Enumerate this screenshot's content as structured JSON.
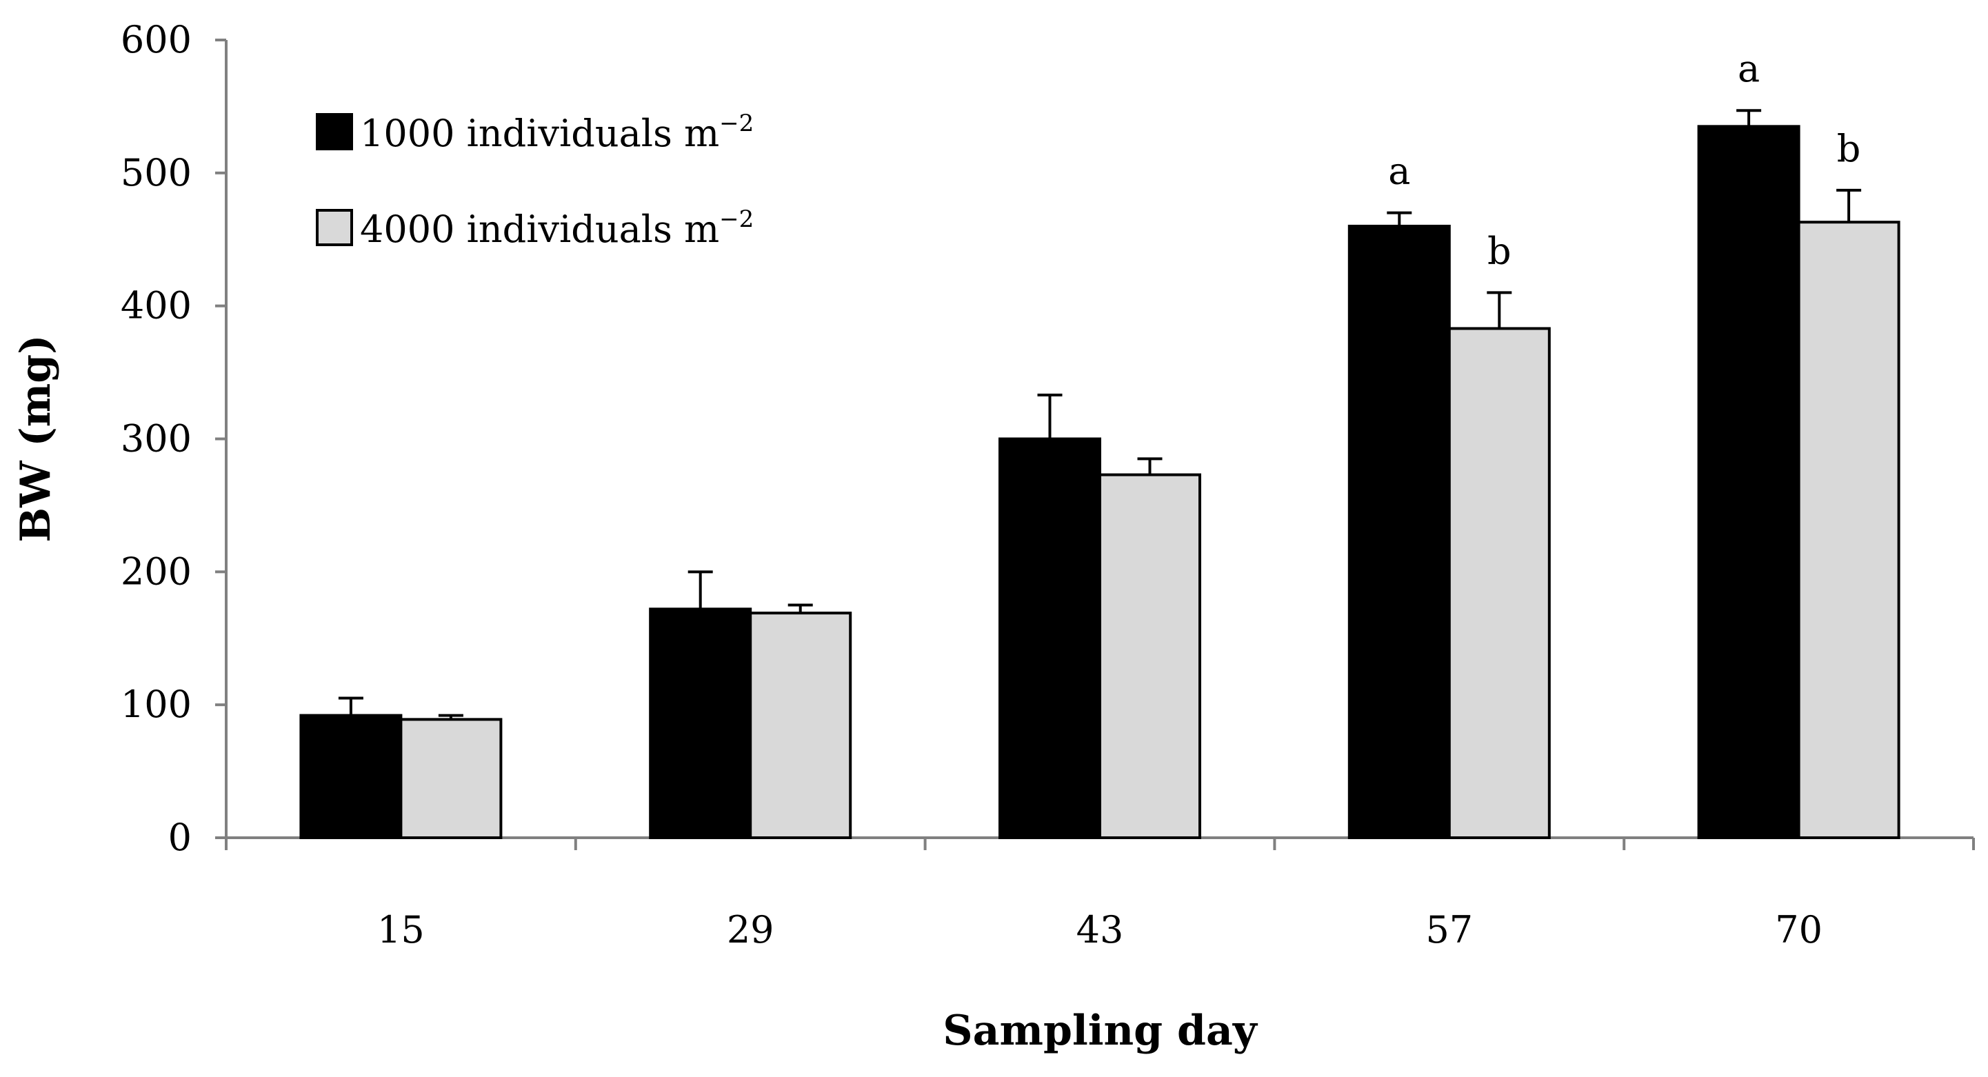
{
  "chart_data": {
    "type": "bar",
    "categories": [
      "15",
      "29",
      "43",
      "57",
      "70"
    ],
    "series": [
      {
        "name": "1000 individuals m",
        "unit_suffix": "−2",
        "color": "#000000",
        "values": [
          92,
          172,
          300,
          460,
          535
        ],
        "errors": [
          13,
          28,
          33,
          10,
          12
        ],
        "labels": [
          "",
          "",
          "",
          "a",
          "a"
        ]
      },
      {
        "name": "4000 individuals m",
        "unit_suffix": "−2",
        "color": "#d9d9d9",
        "values": [
          89,
          169,
          273,
          383,
          463
        ],
        "errors": [
          3,
          6,
          12,
          27,
          24
        ],
        "labels": [
          "",
          "",
          "",
          "b",
          "b"
        ]
      }
    ],
    "title": "",
    "xlabel": "Sampling day",
    "ylabel": "BW (mg)",
    "ylim": [
      0,
      600
    ],
    "yticks": [
      "0",
      "100",
      "200",
      "300",
      "400",
      "500",
      "600"
    ],
    "grid": false,
    "legend_position": "top-left"
  }
}
